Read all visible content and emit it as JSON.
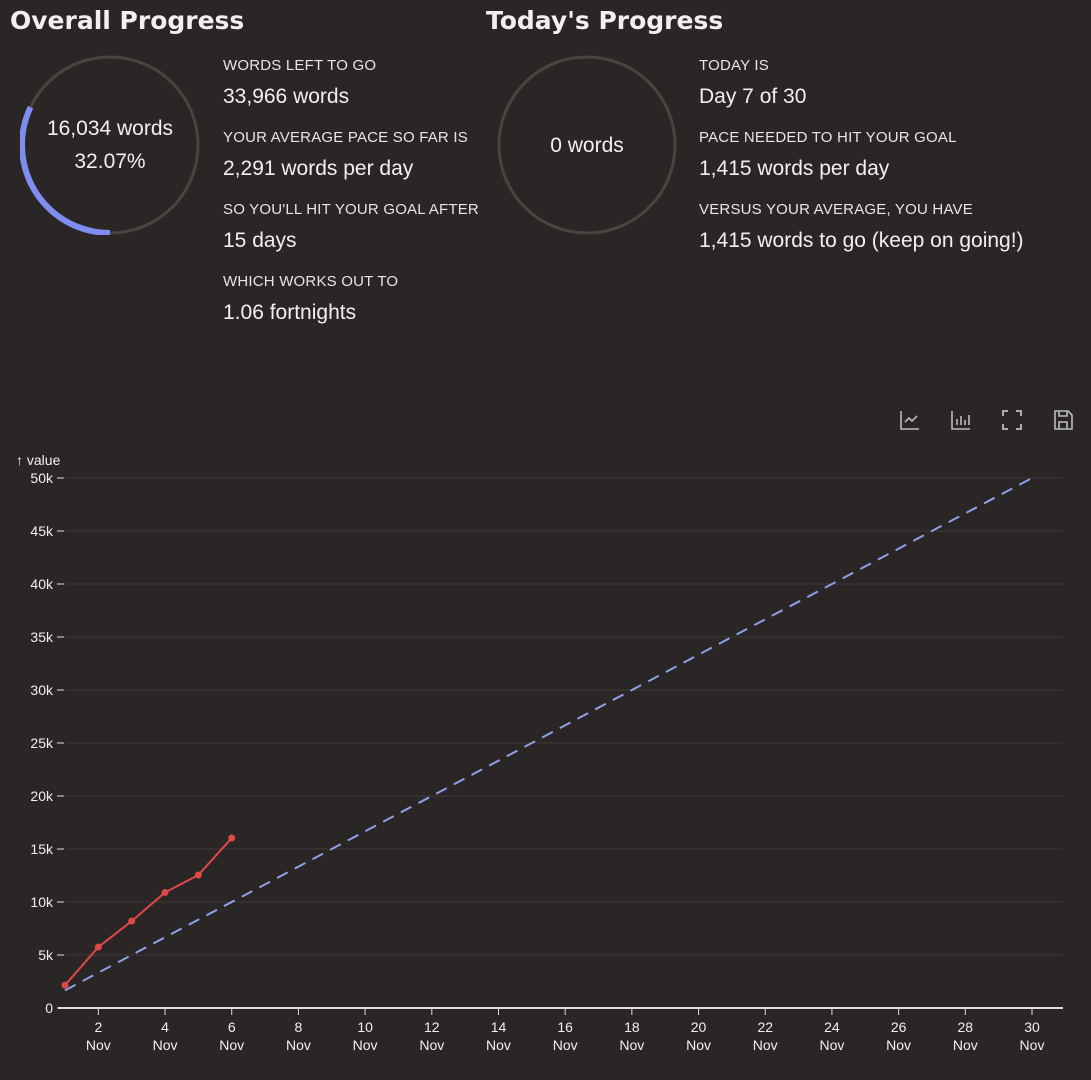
{
  "overall": {
    "title": "Overall Progress",
    "ring_words": "16,034 words",
    "ring_percent": "32.07%",
    "progress_fraction": 0.3207,
    "stats": [
      {
        "label": "Words left to go",
        "value": "33,966 words"
      },
      {
        "label": "Your average pace so far is",
        "value": "2,291 words per day"
      },
      {
        "label": "So you'll hit your goal after",
        "value": "15 days"
      },
      {
        "label": "Which works out to",
        "value": "1.06 fortnights"
      }
    ]
  },
  "today": {
    "title": "Today's Progress",
    "ring_words": "0 words",
    "progress_fraction": 0,
    "stats": [
      {
        "label": "Today is",
        "value": "Day 7 of 30"
      },
      {
        "label": "Pace needed to hit your goal",
        "value": "1,415 words per day"
      },
      {
        "label": "Versus your average, you have",
        "value": "1,415 words to go (keep on going!)"
      }
    ]
  },
  "toolbar": {
    "icons": [
      "line-chart-icon",
      "bar-chart-icon",
      "fullscreen-icon",
      "save-icon"
    ]
  },
  "colors": {
    "background": "#2a2626",
    "accent": "#7f8cf0",
    "actual": "#e04848",
    "goal": "#8fa0e8",
    "ring_track": "#4a4440"
  },
  "chart_data": {
    "type": "line",
    "ylabel": "↑ value",
    "ylim": [
      0,
      50000
    ],
    "yticks": [
      0,
      5000,
      10000,
      15000,
      20000,
      25000,
      30000,
      35000,
      40000,
      45000,
      50000
    ],
    "ytick_labels": [
      "0",
      "5k",
      "10k",
      "15k",
      "20k",
      "25k",
      "30k",
      "35k",
      "40k",
      "45k",
      "50k"
    ],
    "xlim": [
      1,
      30
    ],
    "xticks": [
      2,
      4,
      6,
      8,
      10,
      12,
      14,
      16,
      18,
      20,
      22,
      24,
      26,
      28,
      30
    ],
    "xtick_month": "Nov",
    "grid": true,
    "series": [
      {
        "style": "solid-markers",
        "color": "#e04848",
        "x": [
          1,
          2,
          3,
          4,
          5,
          6
        ],
        "y": [
          2150,
          5750,
          8200,
          10900,
          12550,
          16034
        ]
      },
      {
        "style": "dashed",
        "color": "#8fa0e8",
        "x": [
          1,
          30
        ],
        "y": [
          1667,
          50000
        ]
      }
    ]
  }
}
